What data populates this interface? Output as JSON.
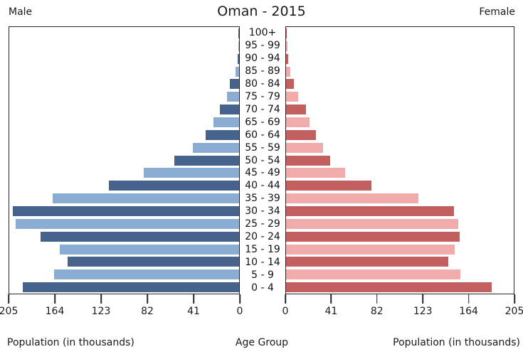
{
  "chart_data": {
    "type": "bar",
    "subtype": "population-pyramid",
    "title": "Oman - 2015",
    "left_header": "Male",
    "right_header": "Female",
    "categories_label": "Age Group",
    "xlabel_left": "Population (in thousands)",
    "xlabel_right": "Population (in thousands)",
    "xlim": [
      0,
      205
    ],
    "xticks_left": [
      205,
      164,
      123,
      82,
      41,
      0
    ],
    "xticks_right": [
      0,
      41,
      82,
      123,
      164,
      205
    ],
    "grid": false,
    "categories_top_to_bottom": [
      "100+",
      "95 - 99",
      "90 - 94",
      "85 - 89",
      "80 - 84",
      "75 - 79",
      "70 - 74",
      "65 - 69",
      "60 - 64",
      "55 - 59",
      "50 - 54",
      "45 - 49",
      "40 - 44",
      "35 - 39",
      "30 - 34",
      "25 - 29",
      "20 - 24",
      "15 - 19",
      "10 - 14",
      "5 - 9",
      "0 - 4"
    ],
    "shade_pattern": "rows alternate dark/light starting dark at 100+ and dark at 0 - 4",
    "series": [
      {
        "name": "Male",
        "side": "left",
        "color_dark": "#45638c",
        "color_light": "#8cadd3",
        "values": [
          0.4,
          0.8,
          1.5,
          3.5,
          8,
          11,
          17,
          23,
          30,
          41,
          58,
          85,
          116,
          166,
          202,
          199,
          177,
          160,
          153,
          165,
          193
        ]
      },
      {
        "name": "Female",
        "side": "right",
        "color_dark": "#c25f5f",
        "color_light": "#f2abab",
        "values": [
          0.5,
          1,
          2,
          4,
          7,
          11,
          18,
          21,
          27,
          33,
          40,
          53,
          77,
          119,
          151,
          155,
          156,
          152,
          146,
          157,
          185
        ]
      }
    ],
    "axis_color": "#262626"
  }
}
